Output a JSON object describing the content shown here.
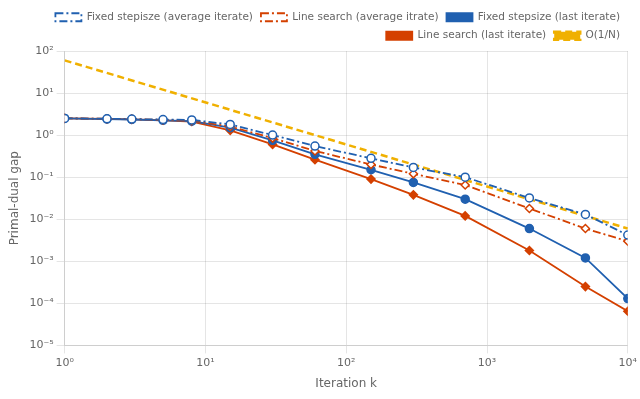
{
  "chart_data": {
    "type": "line",
    "xlabel": "Iteration k",
    "ylabel": "Primal-dual gap",
    "log": true,
    "grid": true,
    "legend": "upper right",
    "xlim": [
      1,
      10000
    ],
    "ylim": [
      1e-05,
      100
    ],
    "xticks": [
      {
        "value": 1,
        "label": "10⁰"
      },
      {
        "value": 10,
        "label": "10¹"
      },
      {
        "value": 100,
        "label": "10²"
      },
      {
        "value": 1000,
        "label": "10³"
      },
      {
        "value": 10000,
        "label": "10⁴"
      }
    ],
    "yticks": [
      {
        "value": 1e-05,
        "label": "10⁻⁵"
      },
      {
        "value": 0.0001,
        "label": "10⁻⁴"
      },
      {
        "value": 0.001,
        "label": "10⁻³"
      },
      {
        "value": 0.01,
        "label": "10⁻²"
      },
      {
        "value": 0.1,
        "label": "10⁻¹"
      },
      {
        "value": 1,
        "label": "10⁰"
      },
      {
        "value": 10,
        "label": "10¹"
      },
      {
        "value": 100,
        "label": "10²"
      }
    ],
    "series": [
      {
        "name": "Fixed stepisze (average iterate)",
        "color": "#2060b0",
        "line_style": "dashdot",
        "marker": "circle-open",
        "x": [
          1,
          2,
          3,
          5,
          8,
          15,
          30,
          60,
          150,
          300,
          700,
          2000,
          5000,
          10000
        ],
        "values": [
          2.5,
          2.45,
          2.4,
          2.35,
          2.3,
          1.8,
          1.0,
          0.55,
          0.28,
          0.17,
          0.1,
          0.032,
          0.013,
          0.0042
        ]
      },
      {
        "name": "Line search (average itrate)",
        "color": "#d44000",
        "line_style": "dashdot",
        "marker": "diamond-open",
        "x": [
          1,
          2,
          3,
          5,
          8,
          15,
          30,
          60,
          150,
          300,
          700,
          2000,
          5000,
          10000
        ],
        "values": [
          2.5,
          2.45,
          2.4,
          2.3,
          2.2,
          1.6,
          0.85,
          0.42,
          0.2,
          0.12,
          0.065,
          0.018,
          0.006,
          0.003
        ]
      },
      {
        "name": "Fixed stepsize (last iterate)",
        "color": "#2060b0",
        "line_style": "solid",
        "marker": "circle",
        "x": [
          1,
          2,
          3,
          5,
          8,
          15,
          30,
          60,
          150,
          300,
          700,
          2000,
          5000,
          10000
        ],
        "values": [
          2.5,
          2.4,
          2.35,
          2.25,
          2.15,
          1.5,
          0.75,
          0.35,
          0.15,
          0.075,
          0.03,
          0.006,
          0.0012,
          0.00013
        ]
      },
      {
        "name": "Line search (last iterate)",
        "color": "#d44000",
        "line_style": "solid",
        "marker": "diamond",
        "x": [
          1,
          2,
          3,
          5,
          8,
          15,
          30,
          60,
          150,
          300,
          700,
          2000,
          5000,
          10000
        ],
        "values": [
          2.5,
          2.42,
          2.38,
          2.25,
          2.1,
          1.3,
          0.6,
          0.26,
          0.09,
          0.038,
          0.012,
          0.0018,
          0.00025,
          6.5e-05
        ]
      },
      {
        "name": "O(1/N)",
        "color": "#f0b000",
        "line_style": "dashed",
        "marker": "none",
        "x": [
          1,
          10000
        ],
        "values": [
          60.0,
          0.006
        ]
      }
    ]
  }
}
